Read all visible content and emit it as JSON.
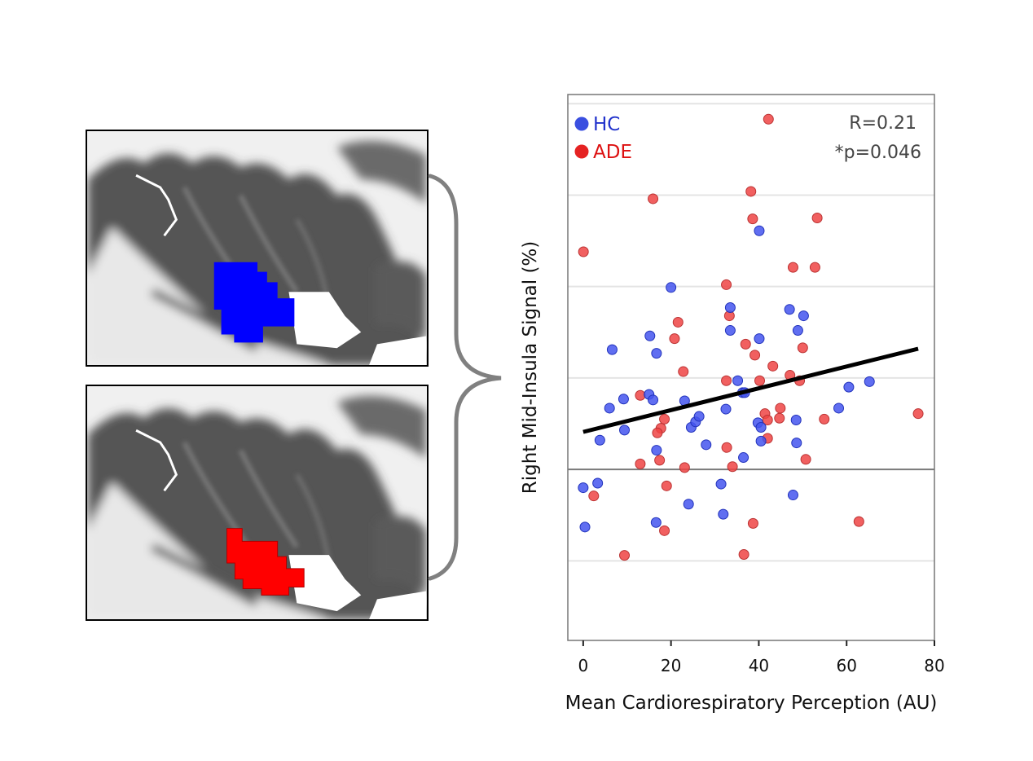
{
  "figure": {
    "regions": [
      {
        "label": "HC region (blue)",
        "color": "#0000ff"
      },
      {
        "label": "ADE region (red)",
        "color": "#ff0000"
      }
    ],
    "brace_color": "#808080"
  },
  "chart_data": {
    "type": "scatter",
    "title": "",
    "xlabel": "Mean Cardiorespiratory Perception (AU)",
    "ylabel": "Right Mid-Insula Signal (%)",
    "xlim": [
      -3.5,
      80
    ],
    "ylim": [
      -1.87,
      4.1
    ],
    "y_units_note": "y values expressed in gridline units (no y tick labels shown); 0 = dark reference line",
    "xticks": [
      0,
      20,
      40,
      60,
      80
    ],
    "xtick_labels": [
      "0",
      "20",
      "40",
      "60",
      "80"
    ],
    "y_gridlines": [
      4,
      3,
      2,
      1,
      -1
    ],
    "y_reference_line": 0,
    "grid": true,
    "legend": {
      "placement": "top-left",
      "entries": [
        {
          "name": "HC",
          "color": "#3a4fe0"
        },
        {
          "name": "ADE",
          "color": "#e52222"
        }
      ]
    },
    "annotations": [
      {
        "text": "R=0.21",
        "placement": "top-right"
      },
      {
        "text": "*p=0.046",
        "placement": "top-right"
      }
    ],
    "regression_line": {
      "x": [
        0,
        76.3
      ],
      "y": [
        0.41,
        1.32
      ],
      "color": "#000000"
    },
    "series": [
      {
        "name": "HC",
        "color": "#4455ee",
        "points": [
          [
            0,
            -0.2
          ],
          [
            3.3,
            -0.15
          ],
          [
            0.4,
            -0.63
          ],
          [
            3.8,
            0.32
          ],
          [
            6,
            0.67
          ],
          [
            9.2,
            0.77
          ],
          [
            9.4,
            0.43
          ],
          [
            6.6,
            1.31
          ],
          [
            15.2,
            1.46
          ],
          [
            16.7,
            1.27
          ],
          [
            20,
            1.99
          ],
          [
            15,
            0.82
          ],
          [
            15.9,
            0.76
          ],
          [
            23.1,
            0.75
          ],
          [
            16.7,
            0.21
          ],
          [
            16.6,
            -0.58
          ],
          [
            24,
            -0.38
          ],
          [
            24.6,
            0.46
          ],
          [
            25.6,
            0.52
          ],
          [
            26.4,
            0.58
          ],
          [
            28,
            0.27
          ],
          [
            32.5,
            0.66
          ],
          [
            31.4,
            -0.16
          ],
          [
            31.9,
            -0.49
          ],
          [
            33.5,
            1.77
          ],
          [
            33.5,
            1.52
          ],
          [
            35.2,
            0.97
          ],
          [
            36.3,
            0.84
          ],
          [
            36.8,
            0.84
          ],
          [
            36.5,
            0.13
          ],
          [
            40.1,
            1.43
          ],
          [
            40.1,
            2.61
          ],
          [
            39.8,
            0.51
          ],
          [
            40.5,
            0.46
          ],
          [
            40.5,
            0.31
          ],
          [
            47,
            1.75
          ],
          [
            50.2,
            1.68
          ],
          [
            48.9,
            1.52
          ],
          [
            48.5,
            0.54
          ],
          [
            48.6,
            0.29
          ],
          [
            47.8,
            -0.28
          ],
          [
            58.2,
            0.67
          ],
          [
            60.5,
            0.9
          ],
          [
            65.2,
            0.96
          ]
        ]
      },
      {
        "name": "ADE",
        "color": "#ee4444",
        "points": [
          [
            0.06,
            2.38
          ],
          [
            2.4,
            -0.29
          ],
          [
            9.4,
            -0.94
          ],
          [
            19,
            -0.18
          ],
          [
            18.5,
            -0.67
          ],
          [
            13,
            0.06
          ],
          [
            17.4,
            0.1
          ],
          [
            23.1,
            0.02
          ],
          [
            34,
            0.03
          ],
          [
            50.7,
            0.11
          ],
          [
            38.7,
            -0.59
          ],
          [
            36.6,
            -0.93
          ],
          [
            62.8,
            -0.57
          ],
          [
            42.2,
            3.83
          ],
          [
            15.9,
            2.96
          ],
          [
            38.2,
            3.04
          ],
          [
            38.6,
            2.74
          ],
          [
            53.3,
            2.75
          ],
          [
            47.8,
            2.21
          ],
          [
            52.8,
            2.21
          ],
          [
            32.6,
            2.02
          ],
          [
            33.3,
            1.68
          ],
          [
            21.6,
            1.61
          ],
          [
            20.8,
            1.43
          ],
          [
            37,
            1.37
          ],
          [
            39.1,
            1.25
          ],
          [
            50,
            1.33
          ],
          [
            43.2,
            1.13
          ],
          [
            22.8,
            1.07
          ],
          [
            32.6,
            0.97
          ],
          [
            40.2,
            0.97
          ],
          [
            47.1,
            1.03
          ],
          [
            49.3,
            0.97
          ],
          [
            13,
            0.81
          ],
          [
            76.3,
            0.61
          ],
          [
            44.9,
            0.67
          ],
          [
            41.4,
            0.61
          ],
          [
            42,
            0.54
          ],
          [
            44.7,
            0.56
          ],
          [
            54.9,
            0.55
          ],
          [
            18.5,
            0.55
          ],
          [
            17.7,
            0.45
          ],
          [
            16.9,
            0.4
          ],
          [
            32.7,
            0.24
          ],
          [
            42,
            0.34
          ]
        ]
      }
    ]
  }
}
